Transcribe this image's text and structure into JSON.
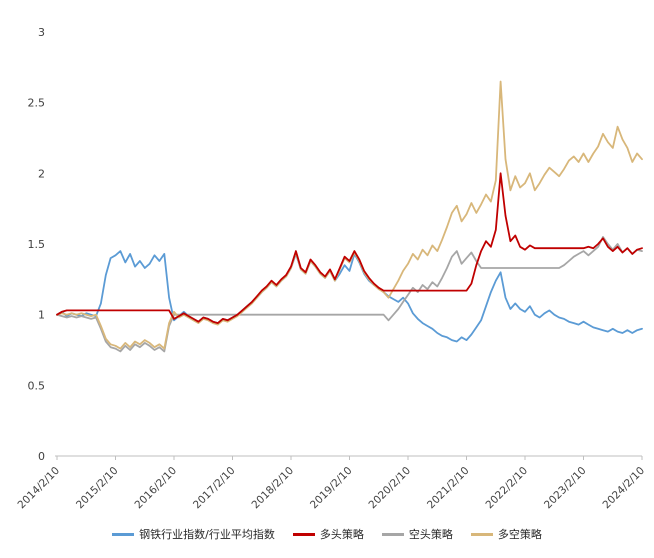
{
  "chart_data": {
    "type": "line",
    "title": "",
    "xlabel": "",
    "ylabel": "",
    "ylim": [
      0,
      3
    ],
    "y_ticks": [
      0,
      0.5,
      1,
      1.5,
      2,
      2.5,
      3
    ],
    "grid": false,
    "legend_position": "bottom",
    "x_ticks": [
      "2014/2/10",
      "2015/2/10",
      "2016/2/10",
      "2017/2/10",
      "2018/2/10",
      "2019/2/10",
      "2020/2/10",
      "2021/2/10",
      "2022/2/10",
      "2023/2/10",
      "2024/2/10"
    ],
    "x_tick_every": 12,
    "axis_color": "#bfbfbf",
    "series": [
      {
        "id": "index-ratio",
        "name": "钢铁行业指数/行业平均指数",
        "color": "#5B9BD5",
        "z": 0,
        "values": [
          1.0,
          1.02,
          0.99,
          1.01,
          1.0,
          0.99,
          1.01,
          1.0,
          0.99,
          1.08,
          1.28,
          1.4,
          1.42,
          1.45,
          1.37,
          1.43,
          1.34,
          1.38,
          1.33,
          1.36,
          1.42,
          1.38,
          1.43,
          1.12,
          0.96,
          0.99,
          1.02,
          0.99,
          0.97,
          0.95,
          0.98,
          0.97,
          0.95,
          0.94,
          0.97,
          0.96,
          0.98,
          1.0,
          1.03,
          1.06,
          1.09,
          1.12,
          1.16,
          1.19,
          1.23,
          1.2,
          1.24,
          1.27,
          1.33,
          1.43,
          1.32,
          1.29,
          1.38,
          1.34,
          1.29,
          1.26,
          1.31,
          1.24,
          1.29,
          1.35,
          1.31,
          1.43,
          1.37,
          1.29,
          1.24,
          1.21,
          1.19,
          1.16,
          1.13,
          1.11,
          1.09,
          1.12,
          1.08,
          1.01,
          0.97,
          0.94,
          0.92,
          0.9,
          0.87,
          0.85,
          0.84,
          0.82,
          0.81,
          0.84,
          0.82,
          0.86,
          0.91,
          0.96,
          1.06,
          1.16,
          1.24,
          1.3,
          1.12,
          1.04,
          1.08,
          1.04,
          1.02,
          1.06,
          1.0,
          0.98,
          1.01,
          1.03,
          1.0,
          0.98,
          0.97,
          0.95,
          0.94,
          0.93,
          0.95,
          0.93,
          0.91,
          0.9,
          0.89,
          0.88,
          0.9,
          0.88,
          0.87,
          0.89,
          0.87,
          0.89,
          0.9
        ]
      },
      {
        "id": "long-strategy",
        "name": "多头策略",
        "color": "#C00000",
        "z": 3,
        "values": [
          1.0,
          1.02,
          1.03,
          1.03,
          1.03,
          1.03,
          1.03,
          1.03,
          1.03,
          1.03,
          1.03,
          1.03,
          1.03,
          1.03,
          1.03,
          1.03,
          1.03,
          1.03,
          1.03,
          1.03,
          1.03,
          1.03,
          1.03,
          1.03,
          0.97,
          0.99,
          1.01,
          0.99,
          0.97,
          0.95,
          0.98,
          0.97,
          0.95,
          0.94,
          0.97,
          0.96,
          0.98,
          1.0,
          1.03,
          1.06,
          1.09,
          1.13,
          1.17,
          1.2,
          1.24,
          1.21,
          1.25,
          1.28,
          1.34,
          1.45,
          1.33,
          1.3,
          1.39,
          1.35,
          1.3,
          1.27,
          1.32,
          1.25,
          1.33,
          1.41,
          1.38,
          1.45,
          1.39,
          1.31,
          1.26,
          1.22,
          1.19,
          1.17,
          1.17,
          1.17,
          1.17,
          1.17,
          1.17,
          1.17,
          1.17,
          1.17,
          1.17,
          1.17,
          1.17,
          1.17,
          1.17,
          1.17,
          1.17,
          1.17,
          1.17,
          1.22,
          1.35,
          1.45,
          1.52,
          1.48,
          1.6,
          2.0,
          1.7,
          1.52,
          1.56,
          1.48,
          1.46,
          1.49,
          1.47,
          1.47,
          1.47,
          1.47,
          1.47,
          1.47,
          1.47,
          1.47,
          1.47,
          1.47,
          1.47,
          1.48,
          1.47,
          1.5,
          1.54,
          1.48,
          1.45,
          1.48,
          1.44,
          1.47,
          1.43,
          1.46,
          1.47
        ]
      },
      {
        "id": "short-strategy",
        "name": "空头策略",
        "color": "#A6A6A6",
        "z": 1,
        "values": [
          1.0,
          0.99,
          0.98,
          0.99,
          0.98,
          0.99,
          0.98,
          0.97,
          0.98,
          0.9,
          0.81,
          0.77,
          0.76,
          0.74,
          0.78,
          0.75,
          0.79,
          0.77,
          0.8,
          0.78,
          0.75,
          0.77,
          0.74,
          0.92,
          1.0,
          1.0,
          1.0,
          1.0,
          1.0,
          1.0,
          1.0,
          1.0,
          1.0,
          1.0,
          1.0,
          1.0,
          1.0,
          1.0,
          1.0,
          1.0,
          1.0,
          1.0,
          1.0,
          1.0,
          1.0,
          1.0,
          1.0,
          1.0,
          1.0,
          1.0,
          1.0,
          1.0,
          1.0,
          1.0,
          1.0,
          1.0,
          1.0,
          1.0,
          1.0,
          1.0,
          1.0,
          1.0,
          1.0,
          1.0,
          1.0,
          1.0,
          1.0,
          1.0,
          0.96,
          1.0,
          1.04,
          1.09,
          1.14,
          1.19,
          1.16,
          1.21,
          1.18,
          1.23,
          1.2,
          1.26,
          1.33,
          1.41,
          1.45,
          1.36,
          1.4,
          1.44,
          1.38,
          1.33,
          1.33,
          1.33,
          1.33,
          1.33,
          1.33,
          1.33,
          1.33,
          1.33,
          1.33,
          1.33,
          1.33,
          1.33,
          1.33,
          1.33,
          1.33,
          1.33,
          1.35,
          1.38,
          1.41,
          1.43,
          1.45,
          1.42,
          1.45,
          1.48,
          1.55,
          1.5,
          1.46,
          1.5,
          1.44,
          1.47,
          1.43,
          1.46,
          1.45
        ]
      },
      {
        "id": "long-short-strategy",
        "name": "多空策略",
        "color": "#D8B77A",
        "z": 2,
        "values": [
          1.0,
          1.01,
          1.0,
          1.01,
          1.0,
          1.01,
          1.0,
          0.99,
          1.0,
          0.92,
          0.83,
          0.79,
          0.78,
          0.76,
          0.8,
          0.77,
          0.81,
          0.79,
          0.82,
          0.8,
          0.77,
          0.79,
          0.76,
          0.94,
          1.02,
          0.98,
          1.0,
          0.98,
          0.96,
          0.94,
          0.97,
          0.96,
          0.94,
          0.93,
          0.96,
          0.95,
          0.97,
          0.99,
          1.02,
          1.05,
          1.08,
          1.12,
          1.16,
          1.19,
          1.23,
          1.2,
          1.24,
          1.27,
          1.33,
          1.44,
          1.32,
          1.29,
          1.38,
          1.34,
          1.29,
          1.26,
          1.31,
          1.24,
          1.32,
          1.4,
          1.37,
          1.44,
          1.38,
          1.3,
          1.25,
          1.21,
          1.18,
          1.16,
          1.12,
          1.18,
          1.24,
          1.31,
          1.36,
          1.43,
          1.39,
          1.46,
          1.42,
          1.49,
          1.45,
          1.53,
          1.62,
          1.72,
          1.77,
          1.66,
          1.71,
          1.79,
          1.72,
          1.78,
          1.85,
          1.8,
          1.95,
          2.65,
          2.1,
          1.88,
          1.98,
          1.9,
          1.93,
          2.0,
          1.88,
          1.93,
          1.99,
          2.04,
          2.01,
          1.98,
          2.03,
          2.09,
          2.12,
          2.08,
          2.14,
          2.08,
          2.14,
          2.19,
          2.28,
          2.22,
          2.18,
          2.33,
          2.24,
          2.18,
          2.08,
          2.14,
          2.1
        ]
      }
    ]
  }
}
